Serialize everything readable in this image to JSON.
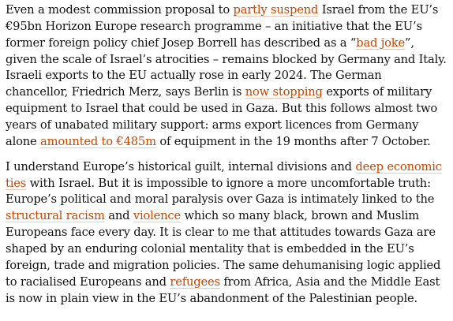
{
  "colors": {
    "text": "#121212",
    "link": "#c74600",
    "link_underline": "#e6c9b6",
    "background": "#ffffff"
  },
  "paragraphs": [
    {
      "s1": "Even a modest commission proposal to ",
      "l1": "partly suspend",
      "s2": " Israel from the EU’s €95bn Horizon Europe research programme – an initiative that the EU’s former foreign policy chief Josep Borrell has described as a “",
      "l2": "bad joke",
      "s3": "”, given the scale of Israel’s atrocities – remains blocked by Germany and Italy. Israeli exports to the EU actually rose in early 2024. The German chancellor, Friedrich Merz, says Berlin is ",
      "l3": "now stopping",
      "s4": " exports of military equipment to Israel that could be used in Gaza. But this follows almost two years of unabated military support: arms export licences from Germany alone ",
      "l4": "amounted to €485m",
      "s5": " of equipment in the 19 months after 7 October."
    },
    {
      "s1": "I understand Europe’s historical guilt, internal divisions and ",
      "l1": "deep economic ties",
      "s2": " with Israel. But it is impossible to ignore a more uncomfortable truth: Europe’s political and moral paralysis over Gaza is intimately linked to the ",
      "l2": "structural racism",
      "s3": " and ",
      "l3": "violence",
      "s4": " which so many black, brown and Muslim Europeans face every day. It is clear to me that attitudes towards Gaza are shaped by an enduring colonial mentality that is embedded in the EU’s foreign, trade and migration policies. The same dehumanising logic applied to racialised Europeans and ",
      "l4": "refugees",
      "s5": " from Africa, Asia and the Middle East is now in plain view in the EU’s abandonment of the Palestinian people."
    }
  ]
}
